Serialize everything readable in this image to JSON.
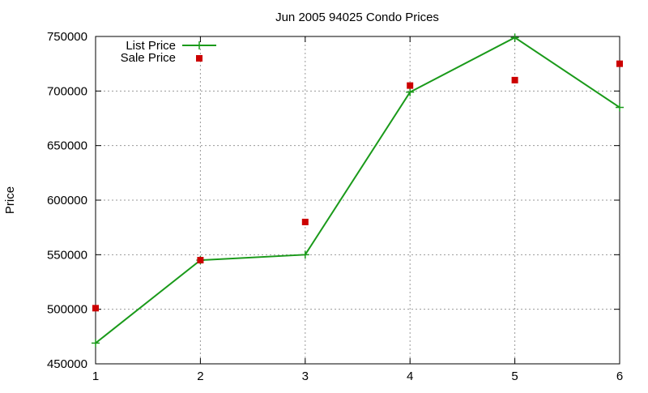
{
  "chart_data": {
    "type": "line",
    "title": "Jun 2005 94025 Condo Prices",
    "xlabel": "",
    "ylabel": "Price",
    "x": [
      1,
      2,
      3,
      4,
      5,
      6
    ],
    "xlim": [
      1,
      6
    ],
    "ylim": [
      450000,
      750000
    ],
    "xticks": [
      "1",
      "2",
      "3",
      "4",
      "5",
      "6"
    ],
    "yticks": [
      "450000",
      "500000",
      "550000",
      "600000",
      "650000",
      "700000",
      "750000"
    ],
    "grid": true,
    "legend_position": "top-left",
    "series": [
      {
        "name": "List Price",
        "style": "line-with-plus-markers",
        "color": "#1a9a1a",
        "values": [
          469000,
          545000,
          550000,
          699000,
          749000,
          685000
        ]
      },
      {
        "name": "Sale Price",
        "style": "square-markers",
        "color": "#cc0000",
        "values": [
          501000,
          545000,
          580000,
          705000,
          710000,
          725000
        ]
      }
    ]
  }
}
